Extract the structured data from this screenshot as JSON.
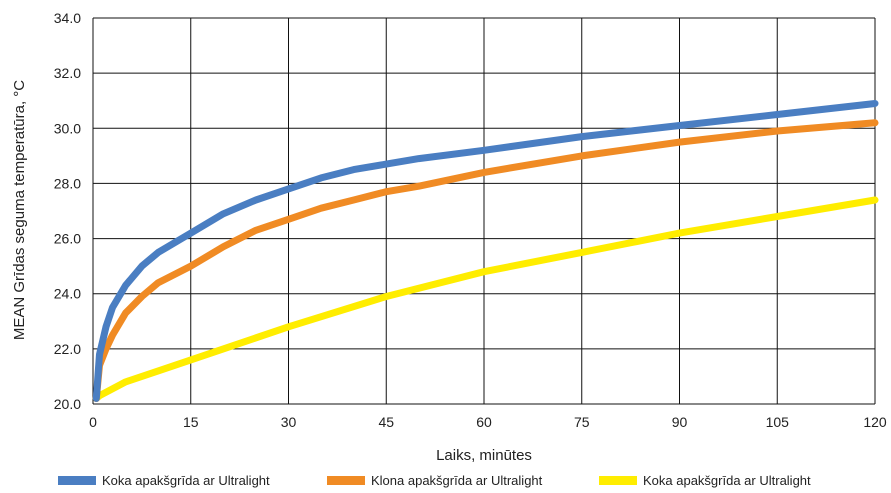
{
  "chart_data": {
    "type": "line",
    "title": "",
    "xlabel": "Laiks, minūtes",
    "ylabel": "MEAN Grīdas seguma temperatūra, °C",
    "xlim": [
      0,
      120
    ],
    "ylim": [
      20,
      34
    ],
    "x_ticks": [
      0,
      15,
      30,
      45,
      60,
      75,
      90,
      105,
      120
    ],
    "x_tick_labels": [
      "0",
      "15",
      "30",
      "45",
      "60",
      "75",
      "90",
      "105",
      "120"
    ],
    "y_ticks": [
      20,
      22,
      24,
      26,
      28,
      30,
      32,
      34
    ],
    "y_tick_labels": [
      "20.0",
      "22.0",
      "24.0",
      "26.0",
      "28.0",
      "30.0",
      "32.0",
      "34.0"
    ],
    "grid": true,
    "legend_position": "bottom",
    "series": [
      {
        "name": "Koka apakšgrīda ar Ultralight",
        "color": "#4a7ec2",
        "x": [
          0.5,
          1,
          2,
          3,
          5,
          7.5,
          10,
          15,
          20,
          25,
          30,
          35,
          40,
          45,
          50,
          60,
          75,
          90,
          105,
          120
        ],
        "y": [
          20.2,
          21.8,
          22.8,
          23.5,
          24.3,
          25.0,
          25.5,
          26.2,
          26.9,
          27.4,
          27.8,
          28.2,
          28.5,
          28.7,
          28.9,
          29.2,
          29.7,
          30.1,
          30.5,
          30.9
        ]
      },
      {
        "name": "Klona apakšgrīda ar Ultralight",
        "color": "#f08b24",
        "x": [
          0.5,
          1,
          2,
          3,
          5,
          7.5,
          10,
          15,
          20,
          25,
          30,
          35,
          40,
          45,
          50,
          60,
          75,
          90,
          105,
          120
        ],
        "y": [
          20.2,
          21.4,
          22.0,
          22.5,
          23.3,
          23.9,
          24.4,
          25.0,
          25.7,
          26.3,
          26.7,
          27.1,
          27.4,
          27.7,
          27.9,
          28.4,
          29.0,
          29.5,
          29.9,
          30.2
        ]
      },
      {
        "name": "Koka apakšgrīda ar Ultralight",
        "color": "#ffed00",
        "x": [
          0.5,
          1,
          5,
          10,
          15,
          20,
          30,
          45,
          60,
          75,
          90,
          105,
          120
        ],
        "y": [
          20.2,
          20.3,
          20.8,
          21.2,
          21.6,
          22.0,
          22.8,
          23.9,
          24.8,
          25.5,
          26.2,
          26.8,
          27.4
        ]
      }
    ]
  }
}
